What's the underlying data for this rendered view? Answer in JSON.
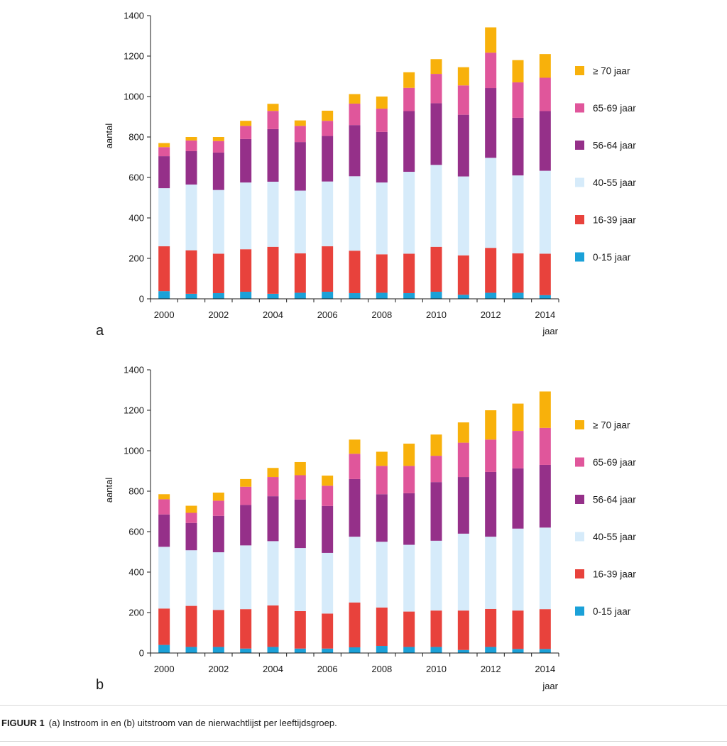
{
  "chart_data": [
    {
      "type": "bar",
      "stacked": true,
      "panel_label": "a",
      "categories": [
        "2000",
        "2001",
        "2002",
        "2003",
        "2004",
        "2005",
        "2006",
        "2007",
        "2008",
        "2009",
        "2010",
        "2011",
        "2012",
        "2013",
        "2014"
      ],
      "x_tick_labels": [
        "2000",
        "2002",
        "2004",
        "2006",
        "2008",
        "2010",
        "2012",
        "2014"
      ],
      "ylabel": "aantal",
      "xlabel": "jaar",
      "ylim": [
        0,
        1400
      ],
      "y_ticks": [
        0,
        200,
        400,
        600,
        800,
        1000,
        1200,
        1400
      ],
      "legend_position": "right",
      "series": [
        {
          "name": "0-15 jaar",
          "color": "#1ba1d8",
          "values": [
            38,
            25,
            28,
            35,
            25,
            30,
            35,
            28,
            30,
            28,
            35,
            20,
            30,
            30,
            18
          ]
        },
        {
          "name": "16-39 jaar",
          "color": "#e8423c",
          "values": [
            222,
            215,
            195,
            210,
            232,
            195,
            225,
            210,
            190,
            195,
            222,
            195,
            222,
            195,
            205
          ]
        },
        {
          "name": "40-55 jaar",
          "color": "#d6ebfa",
          "values": [
            287,
            325,
            315,
            330,
            322,
            310,
            320,
            368,
            355,
            405,
            405,
            390,
            445,
            385,
            410
          ]
        },
        {
          "name": "56-64 jaar",
          "color": "#953089",
          "values": [
            158,
            165,
            185,
            215,
            260,
            240,
            225,
            253,
            250,
            300,
            305,
            305,
            345,
            285,
            295
          ]
        },
        {
          "name": "65-69 jaar",
          "color": "#e0569b",
          "values": [
            45,
            53,
            57,
            65,
            90,
            80,
            75,
            106,
            115,
            115,
            145,
            145,
            175,
            175,
            165
          ]
        },
        {
          "name": "≥ 70 jaar",
          "color": "#f8b10b",
          "values": [
            20,
            17,
            20,
            25,
            35,
            27,
            50,
            47,
            60,
            77,
            73,
            90,
            125,
            110,
            117
          ]
        }
      ]
    },
    {
      "type": "bar",
      "stacked": true,
      "panel_label": "b",
      "categories": [
        "2000",
        "2001",
        "2002",
        "2003",
        "2004",
        "2005",
        "2006",
        "2007",
        "2008",
        "2009",
        "2010",
        "2011",
        "2012",
        "2013",
        "2014"
      ],
      "x_tick_labels": [
        "2000",
        "2002",
        "2004",
        "2006",
        "2008",
        "2010",
        "2012",
        "2014"
      ],
      "ylabel": "aantal",
      "xlabel": "jaar",
      "ylim": [
        0,
        1400
      ],
      "y_ticks": [
        0,
        200,
        400,
        600,
        800,
        1000,
        1200,
        1400
      ],
      "legend_position": "right",
      "series": [
        {
          "name": "0-15 jaar",
          "color": "#1ba1d8",
          "values": [
            40,
            30,
            30,
            22,
            30,
            22,
            22,
            28,
            35,
            30,
            30,
            15,
            30,
            20,
            20
          ]
        },
        {
          "name": "16-39 jaar",
          "color": "#e8423c",
          "values": [
            180,
            203,
            183,
            195,
            205,
            185,
            173,
            222,
            190,
            175,
            180,
            195,
            188,
            190,
            197
          ]
        },
        {
          "name": "40-55 jaar",
          "color": "#d6ebfa",
          "values": [
            305,
            275,
            285,
            315,
            318,
            312,
            300,
            325,
            325,
            330,
            345,
            380,
            357,
            405,
            403
          ]
        },
        {
          "name": "56-64 jaar",
          "color": "#953089",
          "values": [
            160,
            135,
            180,
            200,
            222,
            240,
            232,
            285,
            235,
            255,
            290,
            280,
            320,
            298,
            310
          ]
        },
        {
          "name": "65-69 jaar",
          "color": "#e0569b",
          "values": [
            75,
            50,
            75,
            90,
            95,
            120,
            100,
            125,
            140,
            135,
            130,
            170,
            160,
            185,
            183
          ]
        },
        {
          "name": "≥ 70 jaar",
          "color": "#f8b10b",
          "values": [
            25,
            35,
            40,
            38,
            45,
            65,
            50,
            70,
            70,
            110,
            105,
            100,
            145,
            135,
            180
          ]
        }
      ]
    }
  ],
  "caption": {
    "label": "FIGUUR 1",
    "text": "(a) Instroom in en (b) uitstroom van de nierwachtlijst per leeftijdsgroep."
  }
}
